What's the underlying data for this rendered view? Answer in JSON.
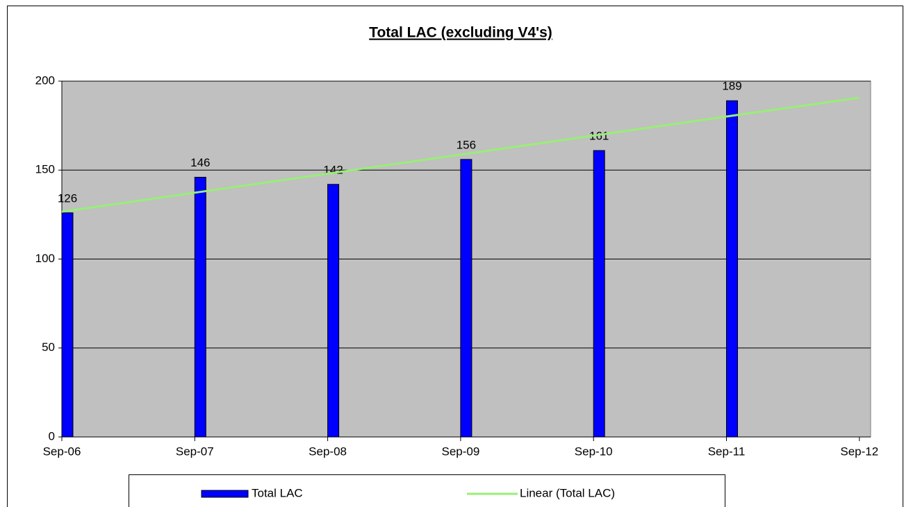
{
  "chart_data": {
    "type": "bar",
    "title": "Total LAC (excluding V4's)",
    "categories": [
      "Sep-06",
      "Sep-07",
      "Sep-08",
      "Sep-09",
      "Sep-10",
      "Sep-11",
      "Sep-12"
    ],
    "series": [
      {
        "name": "Total LAC",
        "type": "bar",
        "color": "#0000ff",
        "values": [
          126,
          146,
          142,
          156,
          161,
          189,
          null
        ]
      },
      {
        "name": "Linear (Total LAC)",
        "type": "line",
        "color": "#99ee77",
        "values": [
          126.6,
          137.3,
          148.0,
          158.7,
          169.4,
          180.1,
          190.7
        ]
      }
    ],
    "ylim": [
      0,
      200
    ],
    "yticks": [
      0,
      50,
      100,
      150,
      200
    ],
    "grid": true,
    "background": "#c0c0c0",
    "legend": "bottom"
  }
}
